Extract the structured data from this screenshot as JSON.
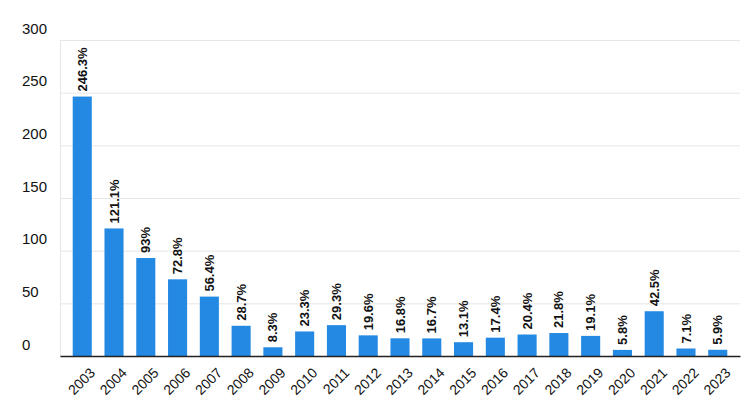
{
  "chart_data": {
    "type": "bar",
    "categories": [
      "2003",
      "2004",
      "2005",
      "2006",
      "2007",
      "2008",
      "2009",
      "2010",
      "2011",
      "2012",
      "2013",
      "2014",
      "2015",
      "2016",
      "2017",
      "2018",
      "2019",
      "2020",
      "2021",
      "2022",
      "2023"
    ],
    "values": [
      246.3,
      121.1,
      93,
      72.8,
      56.4,
      28.7,
      8.3,
      23.3,
      29.3,
      19.6,
      16.8,
      16.7,
      13.1,
      17.4,
      20.4,
      21.8,
      19.1,
      5.8,
      42.5,
      7.1,
      5.9
    ],
    "value_labels": [
      "246.3%",
      "121.1%",
      "93%",
      "72.8%",
      "56.4%",
      "28.7%",
      "8.3%",
      "23.3%",
      "29.3%",
      "19.6%",
      "16.8%",
      "16.7%",
      "13.1%",
      "17.4%",
      "20.4%",
      "21.8%",
      "19.1%",
      "5.8%",
      "42.5%",
      "7.1%",
      "5.9%"
    ],
    "color": "#2389e3",
    "ylim": [
      0,
      300
    ],
    "yticks": [
      0,
      50,
      100,
      150,
      200,
      250,
      300
    ],
    "grid": true,
    "data_labels": true
  }
}
